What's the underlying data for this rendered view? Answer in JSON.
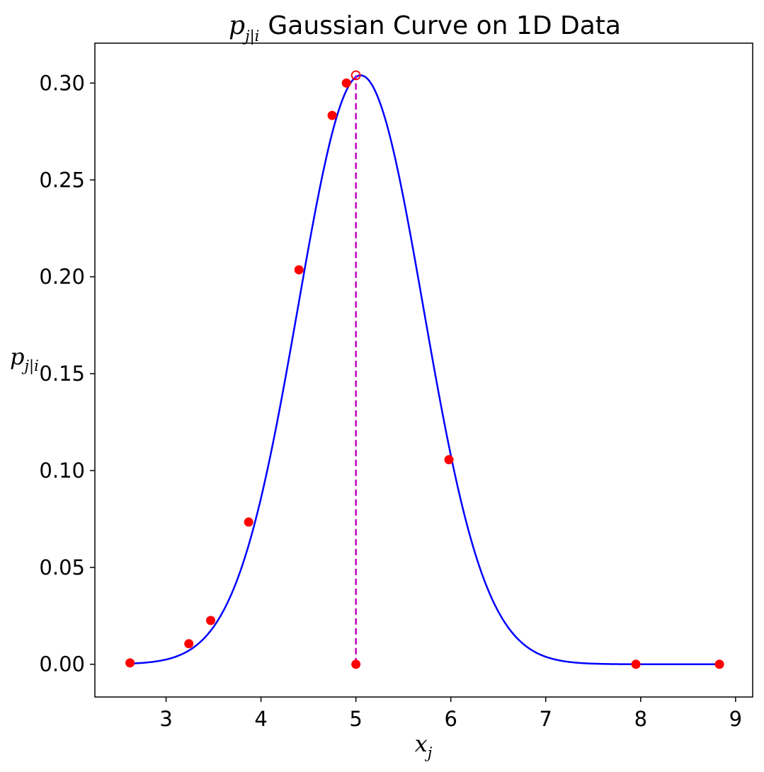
{
  "chart_data": {
    "type": "scatter",
    "title": {
      "symbol": "p",
      "subscript": "j|i",
      "text": "Gaussian Curve on 1D Data"
    },
    "xlabel": {
      "symbol": "x",
      "subscript": "j"
    },
    "ylabel": {
      "symbol": "p",
      "subscript": "j|i"
    },
    "xlim": [
      2.25,
      9.18
    ],
    "ylim": [
      -0.0169,
      0.3206
    ],
    "xticks": [
      3,
      4,
      5,
      6,
      7,
      8,
      9
    ],
    "xtick_labels": [
      "3",
      "4",
      "5",
      "6",
      "7",
      "8",
      "9"
    ],
    "yticks": [
      0.0,
      0.05,
      0.1,
      0.15,
      0.2,
      0.25,
      0.3
    ],
    "ytick_labels": [
      "0.00",
      "0.05",
      "0.10",
      "0.15",
      "0.20",
      "0.25",
      "0.30"
    ],
    "grid": false,
    "series": [
      {
        "kind": "scatter",
        "color": "#ff0000",
        "points": [
          [
            2.62,
            0.0007
          ],
          [
            3.24,
            0.0106
          ],
          [
            3.47,
            0.0226
          ],
          [
            3.87,
            0.0734
          ],
          [
            4.4,
            0.2036
          ],
          [
            4.75,
            0.2833
          ],
          [
            4.9,
            0.3
          ],
          [
            5.98,
            0.1056
          ],
          [
            7.95,
            0.0
          ],
          [
            8.83,
            0.0
          ],
          [
            5.0,
            0.0
          ]
        ]
      },
      {
        "kind": "gaussian_curve",
        "color": "#0000ff",
        "mean": 5.05,
        "sigma": 0.66,
        "peak": 0.304,
        "x_range": [
          2.62,
          8.83
        ]
      },
      {
        "kind": "vertical_dashed_line",
        "color": "#bf00bf",
        "x": 5.0,
        "y_range": [
          0.0,
          0.304
        ]
      },
      {
        "kind": "hollow_marker",
        "color": "#ff0000",
        "point": [
          5.0,
          0.304
        ]
      }
    ]
  }
}
